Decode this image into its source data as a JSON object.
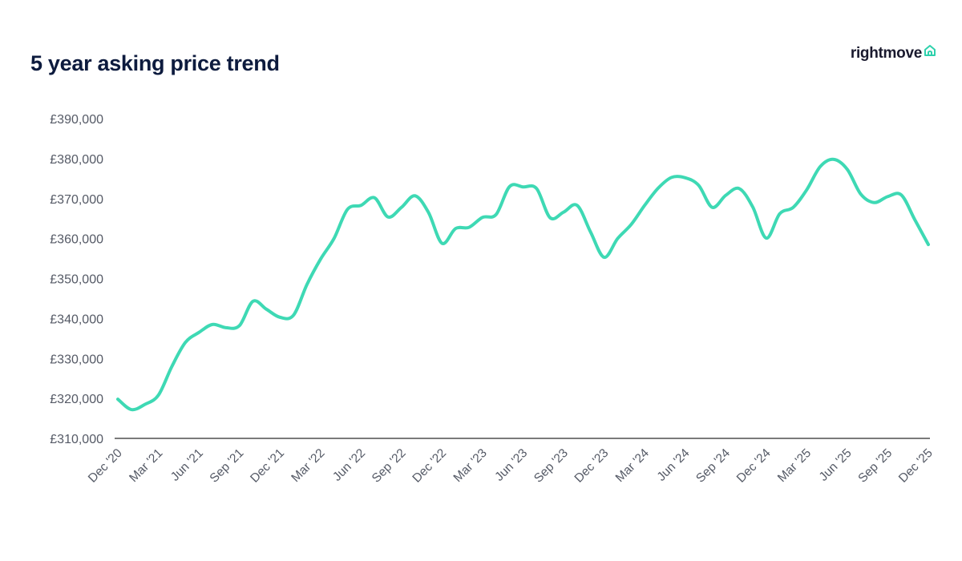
{
  "title": "5 year asking price trend",
  "brand": {
    "name": "rightmove",
    "icon": "house-outline-icon",
    "color": "#1a1a2e",
    "icon_color": "#2ed1ac"
  },
  "chart_data": {
    "type": "line",
    "title": "5 year asking price trend",
    "xlabel": "",
    "ylabel": "",
    "x_tick_labels": [
      "Dec '20",
      "Mar '21",
      "Jun '21",
      "Sep '21",
      "Dec '21",
      "Mar '22",
      "Jun '22",
      "Sep '22",
      "Dec '22",
      "Mar '23",
      "Jun '23",
      "Sep '23",
      "Dec '23",
      "Mar '24",
      "Jun '24",
      "Sep '24",
      "Dec '24",
      "Mar '25",
      "Jun '25",
      "Sep '25",
      "Dec '25"
    ],
    "y_tick_labels": [
      "£310,000",
      "£320,000",
      "£330,000",
      "£340,000",
      "£350,000",
      "£360,000",
      "£370,000",
      "£380,000",
      "£390,000"
    ],
    "ylim": [
      310000,
      390000
    ],
    "grid": false,
    "legend": "none",
    "line_color": "#3ed9b4",
    "series": [
      {
        "name": "",
        "x": [
          "2020-12",
          "2021-01",
          "2021-02",
          "2021-03",
          "2021-04",
          "2021-05",
          "2021-06",
          "2021-07",
          "2021-08",
          "2021-09",
          "2021-10",
          "2021-11",
          "2021-12",
          "2022-01",
          "2022-02",
          "2022-03",
          "2022-04",
          "2022-05",
          "2022-06",
          "2022-07",
          "2022-08",
          "2022-09",
          "2022-10",
          "2022-11",
          "2022-12",
          "2023-01",
          "2023-02",
          "2023-03",
          "2023-04",
          "2023-05",
          "2023-06",
          "2023-07",
          "2023-08",
          "2023-09",
          "2023-10",
          "2023-11",
          "2023-12",
          "2024-01",
          "2024-02",
          "2024-03",
          "2024-04",
          "2024-05",
          "2024-06",
          "2024-07",
          "2024-08",
          "2024-09",
          "2024-10",
          "2024-11",
          "2024-12",
          "2025-01",
          "2025-02",
          "2025-03",
          "2025-04",
          "2025-05",
          "2025-06",
          "2025-07",
          "2025-08",
          "2025-09",
          "2025-10",
          "2025-11",
          "2025-12"
        ],
        "values": [
          319800,
          317200,
          318500,
          320800,
          328000,
          334000,
          336500,
          338500,
          337700,
          338200,
          344300,
          342300,
          340300,
          340800,
          348500,
          354800,
          360000,
          367300,
          368300,
          370200,
          365400,
          367800,
          370700,
          366500,
          358800,
          362500,
          362800,
          365300,
          366000,
          373000,
          372900,
          372500,
          365200,
          366600,
          368300,
          361600,
          355300,
          360000,
          363500,
          368300,
          372600,
          375300,
          375200,
          373300,
          367800,
          370800,
          372500,
          367900,
          360100,
          366200,
          367800,
          372200,
          378000,
          379800,
          377300,
          371100,
          369000,
          370500,
          370900,
          364700,
          358500
        ]
      }
    ]
  }
}
